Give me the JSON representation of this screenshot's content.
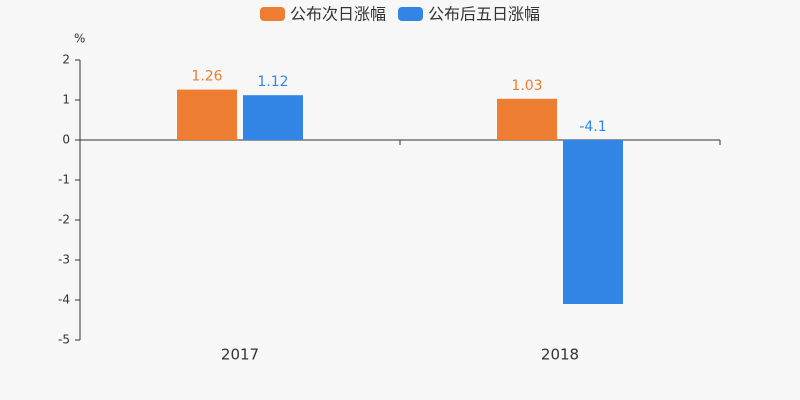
{
  "chart_data": {
    "type": "bar",
    "y_label": "%",
    "categories": [
      "2017",
      "2018"
    ],
    "series": [
      {
        "name": "公布次日涨幅",
        "color": "#ed7d31",
        "values": [
          1.26,
          1.03
        ]
      },
      {
        "name": "公布后五日涨幅",
        "color": "#3385e5",
        "values": [
          1.12,
          -4.1
        ]
      }
    ],
    "ylim": [
      -5,
      2
    ],
    "yticks": [
      -5,
      -4,
      -3,
      -2,
      -1,
      0,
      1,
      2
    ],
    "grid": false
  }
}
